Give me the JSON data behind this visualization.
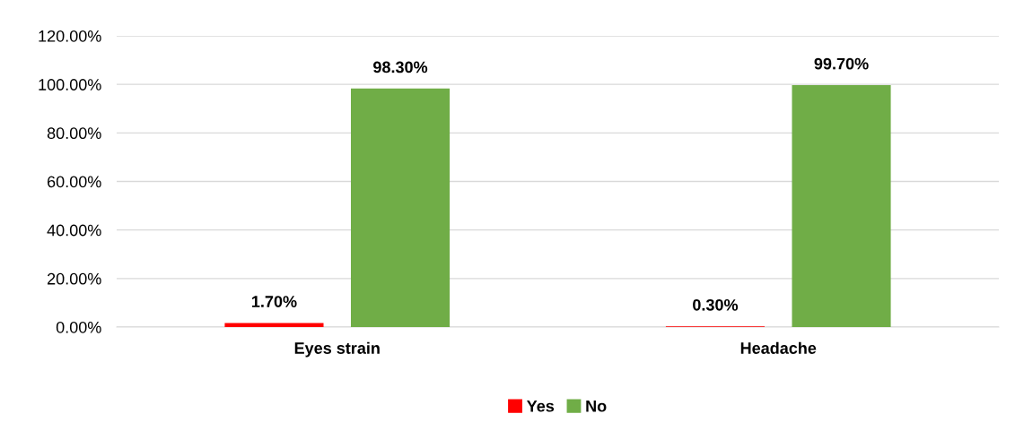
{
  "chart_data": {
    "type": "bar",
    "categories": [
      "Eyes strain",
      "Headache"
    ],
    "series": [
      {
        "name": "Yes",
        "color": "#ff0000",
        "values": [
          1.7,
          0.3
        ],
        "value_labels": [
          "1.70%",
          "0.30%"
        ]
      },
      {
        "name": "No",
        "color": "#70ad47",
        "values": [
          98.3,
          99.7
        ],
        "value_labels": [
          "98.30%",
          "99.70%"
        ]
      }
    ],
    "ylim": [
      0,
      120
    ],
    "yticks": [
      {
        "value": 0,
        "label": "0.00%"
      },
      {
        "value": 20,
        "label": "20.00%"
      },
      {
        "value": 40,
        "label": "40.00%"
      },
      {
        "value": 60,
        "label": "60.00%"
      },
      {
        "value": 80,
        "label": "80.00%"
      },
      {
        "value": 100,
        "label": "100.00%"
      },
      {
        "value": 120,
        "label": "120.00%"
      }
    ],
    "grid": "y",
    "legend": "bottom"
  }
}
